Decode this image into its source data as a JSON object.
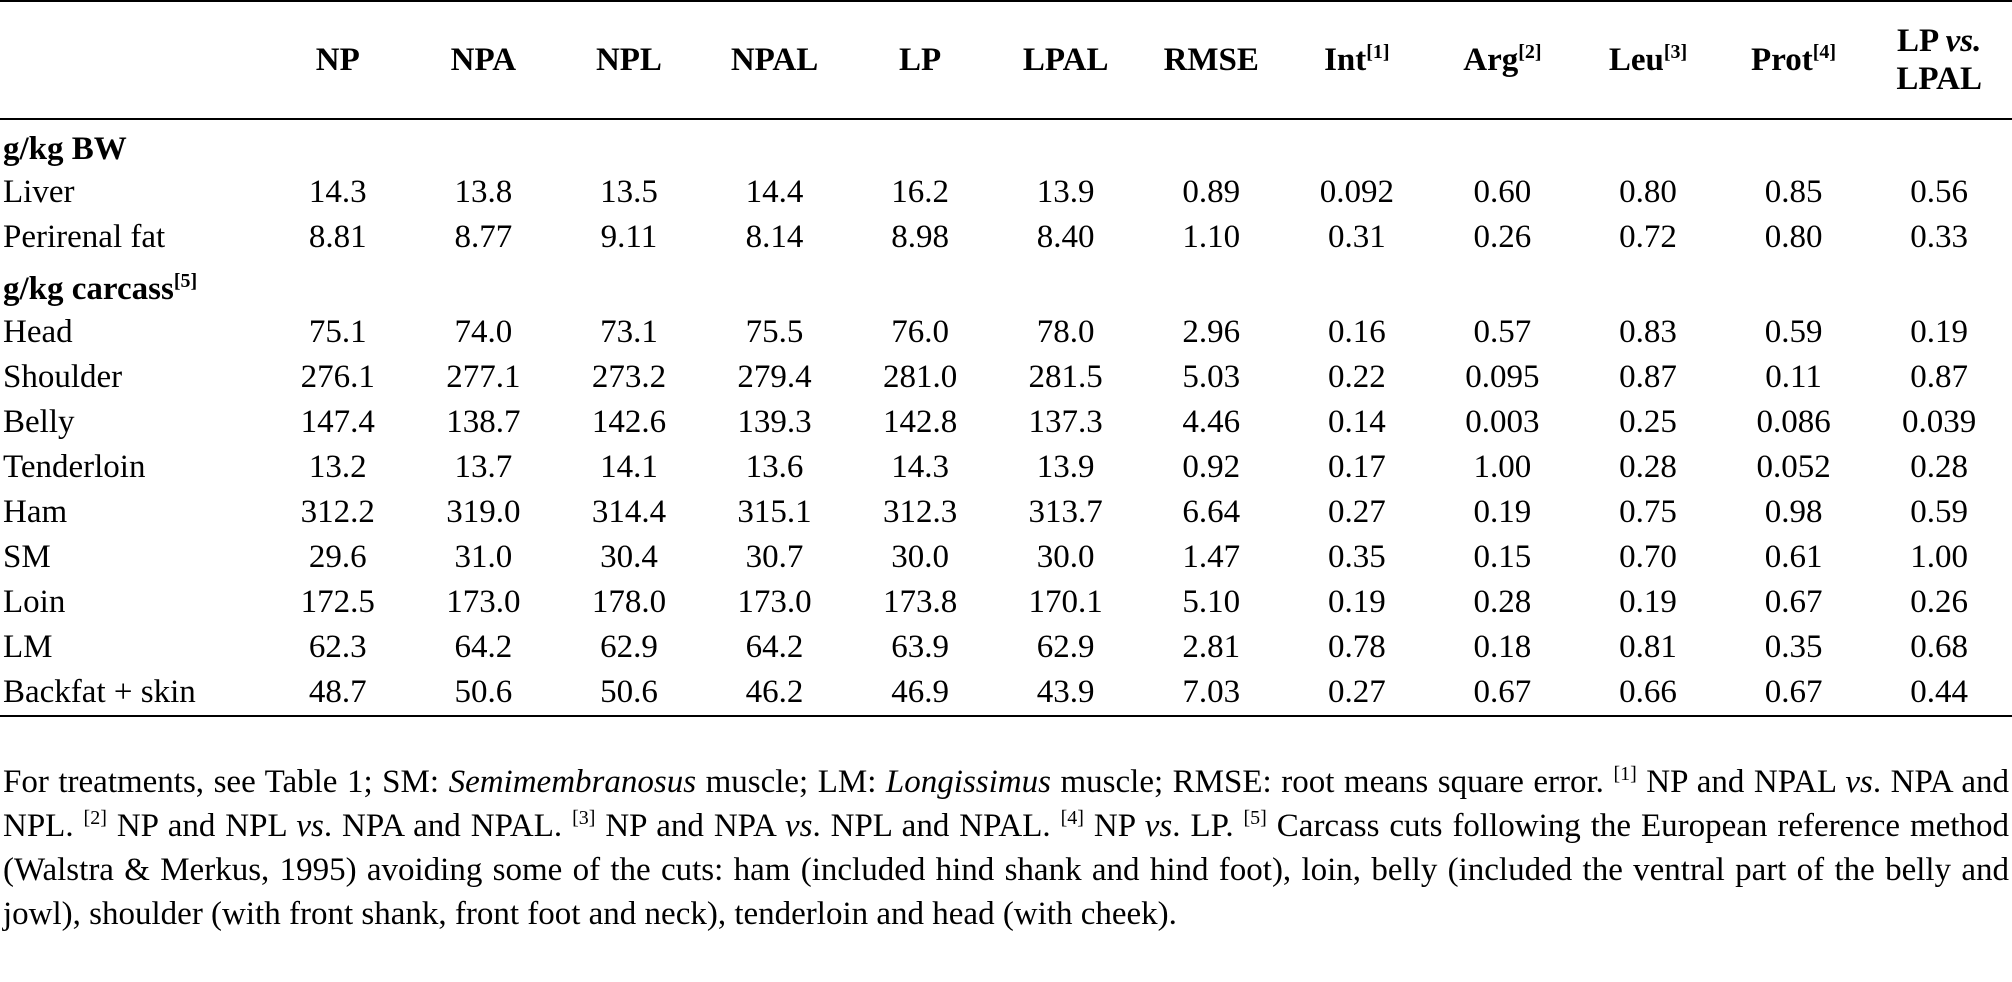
{
  "table": {
    "header": [
      [
        {
          "t": "NP"
        }
      ],
      [
        {
          "t": "NPA"
        }
      ],
      [
        {
          "t": "NPL"
        }
      ],
      [
        {
          "t": "NPAL"
        }
      ],
      [
        {
          "t": "LP"
        }
      ],
      [
        {
          "t": "LPAL"
        }
      ],
      [
        {
          "t": "RMSE"
        }
      ],
      [
        {
          "t": "Int"
        },
        {
          "sup": "[1]"
        }
      ],
      [
        {
          "t": "Arg"
        },
        {
          "sup": "[2]"
        }
      ],
      [
        {
          "t": "Leu"
        },
        {
          "sup": "[3]"
        }
      ],
      [
        {
          "t": "Prot"
        },
        {
          "sup": "[4]"
        }
      ],
      [
        {
          "t": "LP "
        },
        {
          "i": "vs."
        },
        {
          "t": " LPAL"
        }
      ]
    ],
    "sections": [
      {
        "title": [
          {
            "t": "g/kg BW"
          }
        ],
        "rows": [
          [
            "Liver",
            "14.3",
            "13.8",
            "13.5",
            "14.4",
            "16.2",
            "13.9",
            "0.89",
            "0.092",
            "0.60",
            "0.80",
            "0.85",
            "0.56"
          ],
          [
            "Perirenal fat",
            "8.81",
            "8.77",
            "9.11",
            "8.14",
            "8.98",
            "8.40",
            "1.10",
            "0.31",
            "0.26",
            "0.72",
            "0.80",
            "0.33"
          ]
        ]
      },
      {
        "title": [
          {
            "t": "g/kg carcass"
          },
          {
            "sup": "[5]"
          }
        ],
        "rows": [
          [
            "Head",
            "75.1",
            "74.0",
            "73.1",
            "75.5",
            "76.0",
            "78.0",
            "2.96",
            "0.16",
            "0.57",
            "0.83",
            "0.59",
            "0.19"
          ],
          [
            "Shoulder",
            "276.1",
            "277.1",
            "273.2",
            "279.4",
            "281.0",
            "281.5",
            "5.03",
            "0.22",
            "0.095",
            "0.87",
            "0.11",
            "0.87"
          ],
          [
            "Belly",
            "147.4",
            "138.7",
            "142.6",
            "139.3",
            "142.8",
            "137.3",
            "4.46",
            "0.14",
            "0.003",
            "0.25",
            "0.086",
            "0.039"
          ],
          [
            "Tenderloin",
            "13.2",
            "13.7",
            "14.1",
            "13.6",
            "14.3",
            "13.9",
            "0.92",
            "0.17",
            "1.00",
            "0.28",
            "0.052",
            "0.28"
          ],
          [
            "Ham",
            "312.2",
            "319.0",
            "314.4",
            "315.1",
            "312.3",
            "313.7",
            "6.64",
            "0.27",
            "0.19",
            "0.75",
            "0.98",
            "0.59"
          ],
          [
            "SM",
            "29.6",
            "31.0",
            "30.4",
            "30.7",
            "30.0",
            "30.0",
            "1.47",
            "0.35",
            "0.15",
            "0.70",
            "0.61",
            "1.00"
          ],
          [
            "Loin",
            "172.5",
            "173.0",
            "178.0",
            "173.0",
            "173.8",
            "170.1",
            "5.10",
            "0.19",
            "0.28",
            "0.19",
            "0.67",
            "0.26"
          ],
          [
            "LM",
            "62.3",
            "64.2",
            "62.9",
            "64.2",
            "63.9",
            "62.9",
            "2.81",
            "0.78",
            "0.18",
            "0.81",
            "0.35",
            "0.68"
          ],
          [
            "Backfat + skin",
            "48.7",
            "50.6",
            "50.6",
            "46.2",
            "46.9",
            "43.9",
            "7.03",
            "0.27",
            "0.67",
            "0.66",
            "0.67",
            "0.44"
          ]
        ]
      }
    ]
  },
  "footnote": [
    {
      "t": "For treatments, see Table 1; SM: "
    },
    {
      "i": "Semimembranosus"
    },
    {
      "t": " muscle; LM: "
    },
    {
      "i": "Longissimus"
    },
    {
      "t": " muscle; RMSE: root means square error. "
    },
    {
      "sup": "[1]"
    },
    {
      "t": " NP and NPAL "
    },
    {
      "i": "vs"
    },
    {
      "t": ". NPA and NPL. "
    },
    {
      "sup": "[2]"
    },
    {
      "t": " NP and NPL "
    },
    {
      "i": "vs"
    },
    {
      "t": ". NPA and NPAL. "
    },
    {
      "sup": "[3]"
    },
    {
      "t": " NP and NPA "
    },
    {
      "i": "vs"
    },
    {
      "t": ". NPL and NPAL. "
    },
    {
      "sup": "[4]"
    },
    {
      "t": " NP "
    },
    {
      "i": "vs"
    },
    {
      "t": ". LP. "
    },
    {
      "sup": "[5]"
    },
    {
      "t": " Carcass cuts following the European reference method (Walstra & Merkus, 1995) avoiding some of the cuts: ham (included hind shank and hind foot), loin, belly (included the ventral part of the belly and jowl), shoulder (with front shank, front foot and neck), tenderloin and head (with cheek)."
    }
  ]
}
